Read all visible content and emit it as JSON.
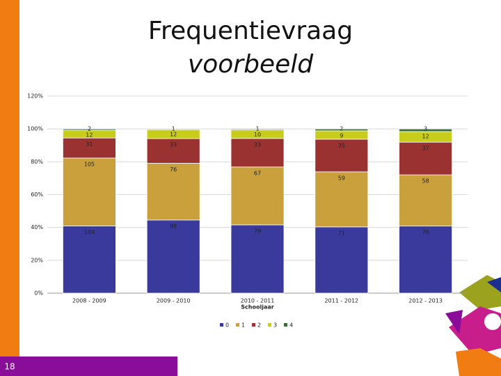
{
  "slide": {
    "title": "Frequentievraag",
    "subtitle": "voorbeeld",
    "number": "18"
  },
  "chart_data": {
    "type": "bar",
    "stacking": "percent",
    "xlabel": "Schooljaar",
    "categories": [
      "2008 - 2009",
      "2009 - 2010",
      "2010 - 2011",
      "2011 - 2012",
      "2012 - 2013"
    ],
    "series": [
      {
        "name": "0",
        "color": "#3a3a9c",
        "values": [
          104,
          98,
          79,
          71,
          76
        ]
      },
      {
        "name": "1",
        "color": "#c9a03c",
        "values": [
          105,
          76,
          67,
          59,
          58
        ]
      },
      {
        "name": "2",
        "color": "#9b3232",
        "values": [
          31,
          33,
          33,
          35,
          37
        ]
      },
      {
        "name": "3",
        "color": "#c8cc1a",
        "values": [
          12,
          12,
          10,
          9,
          12
        ]
      },
      {
        "name": "4",
        "color": "#3b6e3b",
        "values": [
          2,
          1,
          1,
          2,
          3
        ]
      }
    ],
    "ylim": [
      0,
      120
    ],
    "yticks": [
      {
        "value": 0,
        "label": "0%"
      },
      {
        "value": 20,
        "label": "20%"
      },
      {
        "value": 40,
        "label": "40%"
      },
      {
        "value": 60,
        "label": "60%"
      },
      {
        "value": 80,
        "label": "80%"
      },
      {
        "value": 100,
        "label": "100%"
      },
      {
        "value": 120,
        "label": "120%"
      }
    ],
    "grid": true,
    "legend": "bottom"
  }
}
